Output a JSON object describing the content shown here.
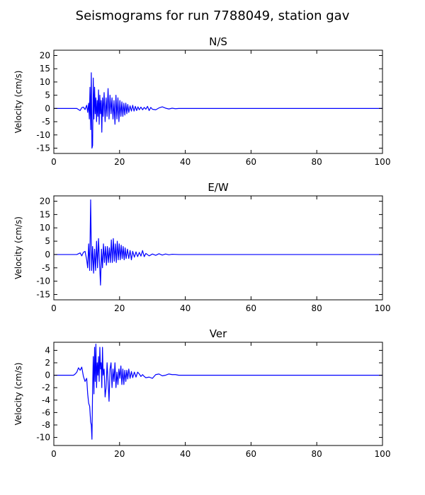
{
  "figure": {
    "title": "Seismograms for run 7788049, station gav"
  },
  "chart_data": [
    {
      "type": "line",
      "title": "N/S",
      "xlabel": "",
      "ylabel": "Velocity (cm/s)",
      "xlim": [
        0,
        100
      ],
      "ylim": [
        -17,
        22
      ],
      "xticks": [
        0,
        20,
        40,
        60,
        80,
        100
      ],
      "yticks": [
        -15,
        -10,
        -5,
        0,
        5,
        10,
        15,
        20
      ],
      "grid": false,
      "color": "#0000ff",
      "x": [
        0,
        7,
        7.5,
        8,
        8.5,
        9,
        9.5,
        10,
        10.3,
        10.6,
        10.8,
        11,
        11.2,
        11.4,
        11.6,
        11.8,
        12,
        12.2,
        12.4,
        12.6,
        12.8,
        13,
        13.2,
        13.4,
        13.6,
        13.8,
        14,
        14.2,
        14.4,
        14.6,
        14.8,
        15,
        15.3,
        15.6,
        15.9,
        16.2,
        16.5,
        16.8,
        17.1,
        17.4,
        17.7,
        18,
        18.3,
        18.6,
        18.9,
        19.2,
        19.5,
        19.8,
        20.1,
        20.4,
        20.7,
        21,
        21.3,
        21.6,
        21.9,
        22.2,
        22.5,
        22.8,
        23.2,
        23.6,
        24,
        24.4,
        24.8,
        25.2,
        25.6,
        26,
        26.5,
        27,
        27.5,
        28,
        28.5,
        29,
        29.5,
        30,
        31,
        32,
        33,
        34,
        35,
        36,
        37,
        38,
        40,
        100
      ],
      "y": [
        0,
        0,
        -0.4,
        -0.8,
        0.3,
        0.5,
        -0.4,
        1.2,
        -1.5,
        2,
        -4,
        8,
        -8,
        13.5,
        -15,
        -14,
        11.5,
        -4,
        8,
        -2,
        4,
        -5,
        3,
        -3,
        7,
        -6,
        5,
        -2,
        3,
        -9,
        4,
        -3,
        6,
        -5,
        4,
        -3,
        7.5,
        -4,
        5,
        -2,
        4,
        -4,
        3,
        -6,
        5,
        -4,
        4,
        -5,
        3,
        -3,
        2.5,
        -3,
        2,
        -2.5,
        2,
        -2,
        1.5,
        -1.5,
        1,
        -1,
        1.2,
        -1,
        0.8,
        -0.8,
        0.6,
        -0.5,
        0.5,
        -0.5,
        0.4,
        -0.3,
        0.8,
        -0.8,
        0.4,
        -0.3,
        -0.5,
        0.2,
        0.6,
        0.1,
        -0.2,
        0.1,
        -0.1,
        0,
        0,
        0
      ]
    },
    {
      "type": "line",
      "title": "E/W",
      "xlabel": "",
      "ylabel": "Velocity (cm/s)",
      "xlim": [
        0,
        100
      ],
      "ylim": [
        -17,
        22
      ],
      "xticks": [
        0,
        20,
        40,
        60,
        80,
        100
      ],
      "yticks": [
        -15,
        -10,
        -5,
        0,
        5,
        10,
        15,
        20
      ],
      "grid": false,
      "color": "#0000ff",
      "x": [
        0,
        7,
        8,
        8.5,
        9,
        9.5,
        10,
        10.3,
        10.6,
        10.9,
        11.2,
        11.5,
        11.8,
        12.1,
        12.4,
        12.7,
        13,
        13.3,
        13.6,
        13.9,
        14.2,
        14.5,
        14.8,
        15.1,
        15.4,
        15.7,
        16,
        16.3,
        16.6,
        16.9,
        17.2,
        17.5,
        17.8,
        18.1,
        18.4,
        18.7,
        19,
        19.3,
        19.6,
        19.9,
        20.2,
        20.5,
        20.8,
        21.1,
        21.4,
        21.7,
        22,
        22.4,
        22.8,
        23.2,
        23.6,
        24,
        24.5,
        25,
        25.5,
        26,
        26.5,
        27,
        27.5,
        28,
        29,
        30,
        31,
        32,
        33,
        34,
        35,
        36,
        38,
        40,
        100
      ],
      "y": [
        0,
        0,
        0.6,
        -0.5,
        0.8,
        1.2,
        -2,
        -5,
        4,
        -6,
        20.5,
        -6,
        3,
        -7,
        2,
        -6,
        5,
        -5,
        6,
        -3,
        -11.5,
        2,
        -5,
        4,
        -3,
        3,
        -4,
        3,
        -3,
        2.5,
        -3,
        5.5,
        -3,
        6,
        -2.5,
        4,
        -3,
        5,
        -2,
        4,
        -2,
        3.5,
        -1.5,
        3,
        -2,
        2.5,
        -1.5,
        2,
        -1.5,
        1.5,
        -2,
        1.2,
        -1,
        1,
        -0.8,
        0.8,
        -0.6,
        1.5,
        -0.8,
        0.4,
        -0.5,
        0.2,
        -0.3,
        0.3,
        -0.2,
        0.2,
        -0.1,
        0.1,
        0,
        0,
        0
      ]
    },
    {
      "type": "line",
      "title": "Ver",
      "xlabel": "",
      "ylabel": "Velocity (cm/s)",
      "xlim": [
        0,
        100
      ],
      "ylim": [
        -11.3,
        5.3
      ],
      "xticks": [
        0,
        20,
        40,
        60,
        80,
        100
      ],
      "yticks": [
        -10,
        -8,
        -6,
        -4,
        -2,
        0,
        2,
        4
      ],
      "grid": false,
      "color": "#0000ff",
      "x": [
        0,
        6,
        6.5,
        7,
        7.5,
        8,
        8.5,
        9,
        9.5,
        10,
        10.3,
        10.6,
        10.9,
        11.2,
        11.4,
        11.6,
        11.8,
        12,
        12.2,
        12.4,
        12.6,
        12.8,
        13,
        13.2,
        13.4,
        13.6,
        13.8,
        14,
        14.2,
        14.4,
        14.6,
        14.8,
        15,
        15.3,
        15.6,
        15.9,
        16.2,
        16.5,
        16.8,
        17.1,
        17.4,
        17.7,
        18,
        18.3,
        18.6,
        18.9,
        19.2,
        19.5,
        19.8,
        20.1,
        20.4,
        20.7,
        21,
        21.3,
        21.6,
        21.9,
        22.2,
        22.5,
        22.8,
        23.2,
        23.6,
        24,
        24.5,
        25,
        25.5,
        26,
        26.5,
        27,
        27.5,
        28,
        29,
        30,
        31,
        32,
        33,
        34,
        35,
        36,
        37,
        38,
        40,
        100
      ],
      "y": [
        0,
        0,
        0.2,
        0.5,
        1.2,
        0.8,
        1.3,
        -0.2,
        -1,
        -0.5,
        -3,
        -4.5,
        -5,
        -7.5,
        -8,
        -10.3,
        -2,
        3,
        -3,
        4.5,
        -1,
        5,
        -2,
        2,
        0,
        3,
        -1,
        4.5,
        1,
        2,
        -2,
        4.5,
        0,
        1,
        -3.5,
        -2,
        2,
        -1,
        -4.2,
        1,
        2,
        -2,
        1,
        -1,
        2,
        -2,
        0.5,
        -1.5,
        1,
        -0.5,
        1.5,
        -1.5,
        1,
        -1.5,
        0.8,
        -1,
        0.8,
        -0.6,
        1,
        -0.5,
        0.6,
        -0.4,
        0.5,
        -0.3,
        0.5,
        0.2,
        -0.2,
        0.1,
        -0.2,
        -0.4,
        -0.3,
        -0.5,
        0.1,
        0.2,
        -0.1,
        0,
        0.2,
        0.1,
        0.1,
        0,
        0,
        0
      ]
    }
  ]
}
